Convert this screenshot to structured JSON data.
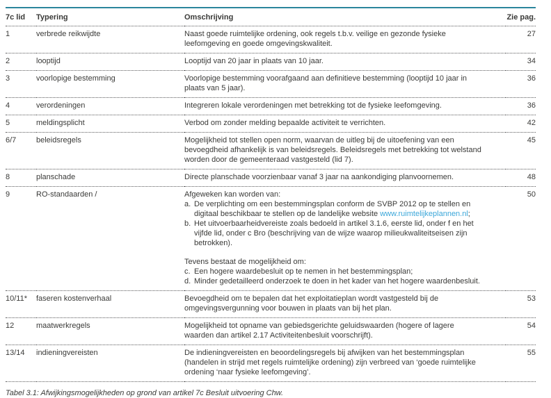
{
  "table": {
    "headers": [
      "7c lid",
      "Typering",
      "Omschrijving",
      "Zie pag."
    ],
    "rows": [
      {
        "lid": "1",
        "typering": "verbrede reikwijdte",
        "pag": "27",
        "omschrijving": [
          {
            "type": "p",
            "text": "Naast goede ruimtelijke ordening, ook regels t.b.v. veilige en gezonde fysieke leefomgeving en goede omgevingskwaliteit."
          }
        ]
      },
      {
        "lid": "2",
        "typering": "looptijd",
        "pag": "34",
        "omschrijving": [
          {
            "type": "p",
            "text": "Looptijd van 20 jaar in plaats van 10 jaar."
          }
        ]
      },
      {
        "lid": "3",
        "typering": "voorlopige bestemming",
        "pag": "36",
        "omschrijving": [
          {
            "type": "p",
            "text": "Voorlopige bestemming voorafgaand aan definitieve bestemming (looptijd 10 jaar in plaats van 5 jaar)."
          }
        ]
      },
      {
        "lid": "4",
        "typering": "verordeningen",
        "pag": "36",
        "omschrijving": [
          {
            "type": "p",
            "text": "Integreren lokale verordeningen met betrekking tot de fysieke leefomgeving."
          }
        ]
      },
      {
        "lid": "5",
        "typering": "meldingsplicht",
        "pag": "42",
        "omschrijving": [
          {
            "type": "p",
            "text": "Verbod om zonder melding bepaalde activiteit te verrichten."
          }
        ]
      },
      {
        "lid": "6/7",
        "typering": "beleidsregels",
        "pag": "45",
        "omschrijving": [
          {
            "type": "p",
            "text": "Mogelijkheid tot stellen open norm, waarvan de uitleg bij de uitoefening van een bevoegdheid afhankelijk is van beleidsregels. Beleidsregels met betrekking tot welstand worden door de gemeenteraad vastgesteld (lid 7)."
          }
        ]
      },
      {
        "lid": "8",
        "typering": "planschade",
        "pag": "48",
        "omschrijving": [
          {
            "type": "p",
            "text": "Directe planschade voorzienbaar vanaf 3 jaar na aankondiging planvoornemen."
          }
        ]
      },
      {
        "lid": "9",
        "typering": "RO-standaarden /",
        "pag": "50",
        "omschrijving": [
          {
            "type": "p",
            "text": "Afgeweken kan worden van:"
          },
          {
            "type": "li",
            "marker": "a.",
            "text_before": "De verplichting om een bestemmingsplan conform de SVBP 2012 op te stellen en digitaal beschikbaar te stellen op de landelijke website ",
            "link": "www.ruimtelijkeplannen.nl",
            "text_after": ";"
          },
          {
            "type": "li",
            "marker": "b.",
            "text": "Het uitvoerbaarheidvereiste zoals bedoeld in artikel 3.1.6, eerste lid, onder f en het vijfde lid, onder c Bro (beschrijving van de wijze waarop milieukwaliteitseisen zijn betrokken)."
          },
          {
            "type": "gap"
          },
          {
            "type": "p",
            "text": "Tevens bestaat de mogelijkheid om:"
          },
          {
            "type": "li",
            "marker": "c.",
            "text": "Een hogere waardebesluit op te nemen in het bestemmingsplan;"
          },
          {
            "type": "li",
            "marker": "d.",
            "text": "Minder gedetailleerd onderzoek te doen in het kader van het hogere waardenbesluit."
          }
        ]
      },
      {
        "lid": "10/11*",
        "typering": "faseren kostenverhaal",
        "pag": "53",
        "omschrijving": [
          {
            "type": "p",
            "text": "Bevoegdheid om te bepalen dat het exploitatieplan wordt vastgesteld bij de omgevingsvergunning voor bouwen in plaats van bij het plan."
          }
        ]
      },
      {
        "lid": "12",
        "typering": "maatwerkregels",
        "pag": "54",
        "omschrijving": [
          {
            "type": "p",
            "text": "Mogelijkheid tot opname van gebiedsgerichte geluidswaarden (hogere of lagere waarden dan artikel 2.17 Activiteitenbesluit voorschrijft)."
          }
        ]
      },
      {
        "lid": "13/14",
        "typering": "indieningvereisten",
        "pag": "55",
        "omschrijving": [
          {
            "type": "p",
            "text": "De indieningvereisten en beoordelingsregels bij afwijken van het bestemmingsplan (handelen in strijd met regels ruimtelijke ordening) zijn verbreed van ‘goede ruimtelijke ordening ‘naar fysieke leefomgeving’."
          }
        ]
      }
    ]
  },
  "caption": "Tabel 3.1: Afwijkingsmogelijkheden op grond van artikel 7c Besluit uitvoering Chw.",
  "colors": {
    "table_top_border": "#2a859c",
    "link": "#3aa6d9",
    "text": "#3a3a38"
  }
}
